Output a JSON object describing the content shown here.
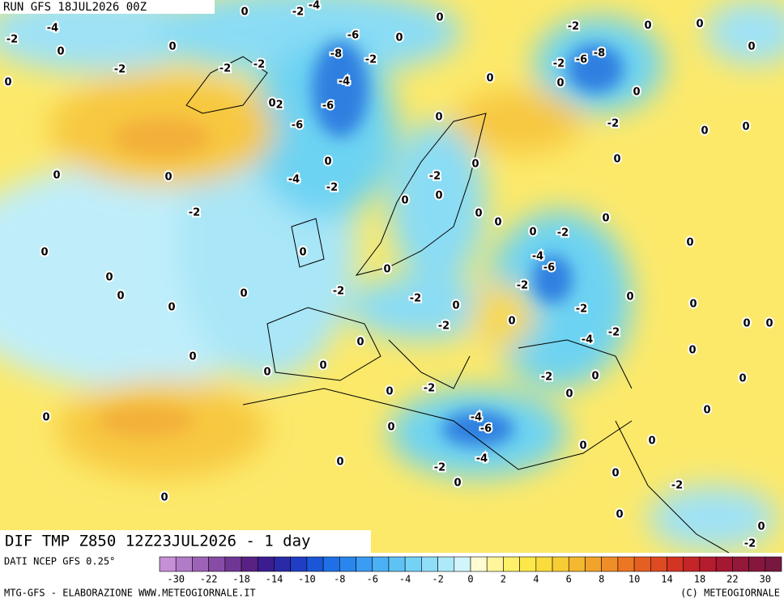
{
  "header": {
    "run": "RUN GFS 18JUL2026 00Z"
  },
  "map": {
    "title": "DIF TMP Z850 12Z23JUL2026 - 1 day",
    "contour_labels": [
      0,
      -2,
      -4,
      -4,
      -2,
      0,
      0,
      -2,
      0,
      -2,
      -2,
      -6,
      -8,
      -2,
      0,
      -4,
      -6,
      2,
      -6,
      0,
      0,
      -2,
      0,
      0,
      0,
      -8,
      -6,
      -2,
      0,
      0,
      0,
      -2,
      0,
      0,
      0,
      0,
      0,
      -4,
      -2,
      0,
      0,
      -2,
      -2,
      0,
      0,
      0,
      0,
      0,
      0,
      -2,
      0,
      0,
      0,
      0,
      0,
      -4,
      -6,
      -2,
      -2,
      0,
      0,
      0,
      0,
      -2,
      -2,
      0,
      0,
      -2,
      0,
      -2,
      -4,
      0,
      0,
      0,
      0,
      0,
      0,
      0,
      0,
      0,
      -2,
      0,
      -2,
      0,
      0,
      0,
      -4,
      -6,
      0,
      0,
      0,
      0,
      -4,
      -2,
      0,
      0,
      0,
      -2,
      0,
      0,
      0,
      -2
    ]
  },
  "colorbar": {
    "source": "DATI NCEP GFS 0.25°",
    "colors": [
      "#c78fd6",
      "#b27bc8",
      "#9d63b8",
      "#874ca6",
      "#703694",
      "#5a2184",
      "#3b1d8f",
      "#2a2aa8",
      "#1f3ec4",
      "#1a56d8",
      "#1f6fe6",
      "#2a86ee",
      "#3a9cf2",
      "#4cb0f4",
      "#5ec2f5",
      "#74d2f7",
      "#8fdef8",
      "#aee9fa",
      "#d2f5fc",
      "#fffbd2",
      "#fff59a",
      "#fff06a",
      "#fde84a",
      "#fadc3c",
      "#f7cc35",
      "#f4b830",
      "#f2a32c",
      "#ef8d28",
      "#ec7624",
      "#e65f22",
      "#de4a22",
      "#d33424",
      "#c52528",
      "#b51c2e",
      "#a51833",
      "#941838",
      "#85173c",
      "#781740"
    ],
    "ticks": [
      -30,
      -22,
      -18,
      -14,
      -10,
      -8,
      -6,
      -4,
      -2,
      0,
      2,
      4,
      6,
      8,
      10,
      14,
      18,
      22,
      30
    ]
  },
  "footer": {
    "left": "MTG-GFS - ELABORAZIONE WWW.METEOGIORNALE.IT",
    "right": "(C) METEOGIORNALE"
  }
}
